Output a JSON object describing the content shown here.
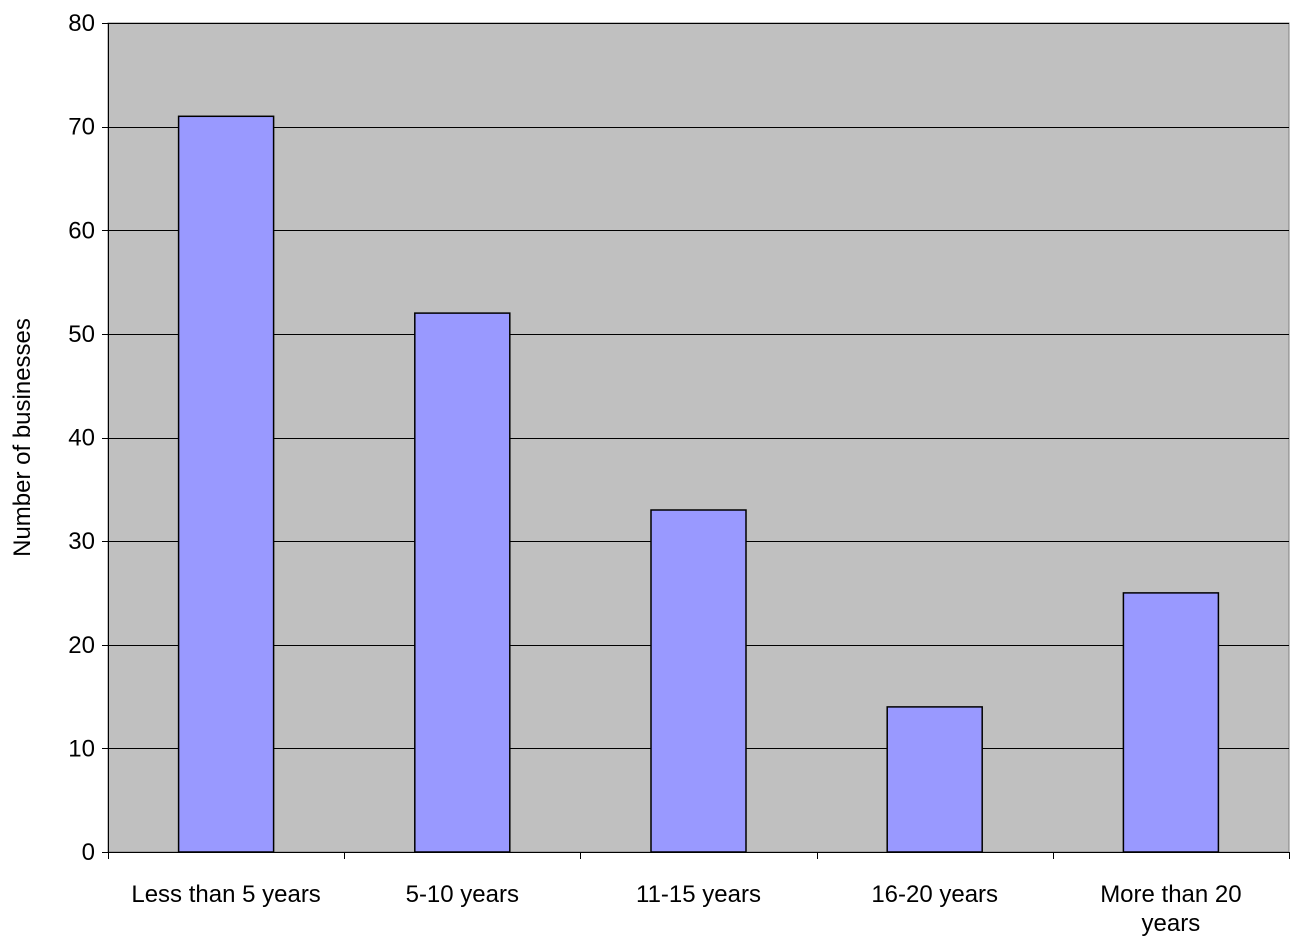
{
  "chart_data": {
    "type": "bar",
    "title": "",
    "xlabel": "",
    "ylabel": "Number of businesses",
    "categories": [
      "Less than 5 years",
      "5-10 years",
      "11-15 years",
      "16-20 years",
      "More than 20 years"
    ],
    "category_lines": [
      [
        "Less than 5 years"
      ],
      [
        "5-10 years"
      ],
      [
        "11-15 years"
      ],
      [
        "16-20 years"
      ],
      [
        "More than 20",
        "years"
      ]
    ],
    "values": [
      71,
      52,
      33,
      14,
      25
    ],
    "ylim": [
      0,
      80
    ],
    "yticks": [
      "0",
      "10",
      "20",
      "30",
      "40",
      "50",
      "60",
      "70",
      "80"
    ],
    "grid": true,
    "legend": "none",
    "colors": {
      "plot_background": "#c0c0c0",
      "bar_fill": "#9999ff",
      "bar_stroke": "#000000",
      "grid": "#000000"
    }
  }
}
